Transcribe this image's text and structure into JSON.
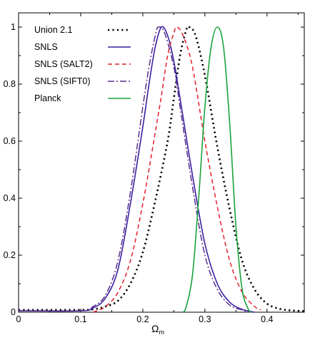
{
  "chart_data": {
    "type": "line",
    "title": "",
    "xlabel": "Ω",
    "xlabel_subscript": "m",
    "ylabel": "",
    "xlim": [
      0,
      0.46
    ],
    "ylim": [
      0,
      1.05
    ],
    "xticks": [
      0,
      0.1,
      0.2,
      0.3,
      0.4
    ],
    "xtick_labels": [
      "0",
      "0.1",
      "0.2",
      "0.3",
      "0.4"
    ],
    "yticks": [
      0,
      0.2,
      0.4,
      0.6,
      0.8,
      1
    ],
    "ytick_labels": [
      "0",
      "0.2",
      "0.4",
      "0.6",
      "0.8",
      "1"
    ],
    "grid": false,
    "legend_position": "top-left",
    "series": [
      {
        "name": "Union 2.1",
        "color": "#000000",
        "style": "dotted",
        "points": [
          [
            0,
            0.008
          ],
          [
            0.1,
            0.008
          ],
          [
            0.12,
            0.01
          ],
          [
            0.14,
            0.02
          ],
          [
            0.16,
            0.04
          ],
          [
            0.18,
            0.1
          ],
          [
            0.2,
            0.21
          ],
          [
            0.22,
            0.39
          ],
          [
            0.24,
            0.6
          ],
          [
            0.25,
            0.75
          ],
          [
            0.26,
            0.9
          ],
          [
            0.27,
            0.99
          ],
          [
            0.275,
            1.0
          ],
          [
            0.285,
            0.97
          ],
          [
            0.3,
            0.83
          ],
          [
            0.32,
            0.58
          ],
          [
            0.34,
            0.36
          ],
          [
            0.36,
            0.18
          ],
          [
            0.38,
            0.08
          ],
          [
            0.4,
            0.03
          ],
          [
            0.42,
            0.012
          ],
          [
            0.44,
            0.006
          ],
          [
            0.46,
            0.004
          ]
        ]
      },
      {
        "name": "SNLS",
        "color": "#3b1f9e",
        "style": "solid",
        "points": [
          [
            0,
            0.005
          ],
          [
            0.1,
            0.005
          ],
          [
            0.12,
            0.015
          ],
          [
            0.14,
            0.05
          ],
          [
            0.16,
            0.15
          ],
          [
            0.18,
            0.38
          ],
          [
            0.2,
            0.65
          ],
          [
            0.21,
            0.8
          ],
          [
            0.22,
            0.93
          ],
          [
            0.23,
            1.0
          ],
          [
            0.24,
            0.97
          ],
          [
            0.25,
            0.88
          ],
          [
            0.26,
            0.75
          ],
          [
            0.28,
            0.48
          ],
          [
            0.3,
            0.24
          ],
          [
            0.32,
            0.1
          ],
          [
            0.34,
            0.035
          ],
          [
            0.36,
            0.01
          ],
          [
            0.38,
            0.0
          ]
        ]
      },
      {
        "name": "SNLS (SALT2)",
        "color": "#e0202a",
        "style": "dashed",
        "points": [
          [
            0.12,
            0.0
          ],
          [
            0.14,
            0.02
          ],
          [
            0.16,
            0.07
          ],
          [
            0.18,
            0.18
          ],
          [
            0.2,
            0.38
          ],
          [
            0.22,
            0.63
          ],
          [
            0.23,
            0.76
          ],
          [
            0.24,
            0.9
          ],
          [
            0.25,
            0.98
          ],
          [
            0.255,
            1.0
          ],
          [
            0.265,
            0.97
          ],
          [
            0.28,
            0.86
          ],
          [
            0.3,
            0.6
          ],
          [
            0.32,
            0.37
          ],
          [
            0.34,
            0.18
          ],
          [
            0.36,
            0.07
          ],
          [
            0.38,
            0.02
          ],
          [
            0.39,
            0.008
          ]
        ]
      },
      {
        "name": "SNLS (SIFT0)",
        "color": "#5a2d8c",
        "style": "dashdot",
        "points": [
          [
            0,
            0.005
          ],
          [
            0.1,
            0.005
          ],
          [
            0.12,
            0.02
          ],
          [
            0.14,
            0.06
          ],
          [
            0.16,
            0.18
          ],
          [
            0.18,
            0.42
          ],
          [
            0.2,
            0.72
          ],
          [
            0.21,
            0.86
          ],
          [
            0.22,
            0.97
          ],
          [
            0.225,
            1.0
          ],
          [
            0.235,
            0.98
          ],
          [
            0.25,
            0.86
          ],
          [
            0.26,
            0.72
          ],
          [
            0.28,
            0.44
          ],
          [
            0.3,
            0.2
          ],
          [
            0.32,
            0.08
          ],
          [
            0.34,
            0.025
          ],
          [
            0.36,
            0.008
          ],
          [
            0.37,
            0.0
          ]
        ]
      },
      {
        "name": "Planck",
        "color": "#1aa33c",
        "style": "solid",
        "points": [
          [
            0.265,
            0.0
          ],
          [
            0.27,
            0.02
          ],
          [
            0.28,
            0.13
          ],
          [
            0.29,
            0.4
          ],
          [
            0.3,
            0.72
          ],
          [
            0.31,
            0.93
          ],
          [
            0.32,
            1.0
          ],
          [
            0.33,
            0.93
          ],
          [
            0.34,
            0.66
          ],
          [
            0.35,
            0.3
          ],
          [
            0.36,
            0.08
          ],
          [
            0.37,
            0.01
          ],
          [
            0.375,
            0.0
          ]
        ]
      }
    ]
  }
}
